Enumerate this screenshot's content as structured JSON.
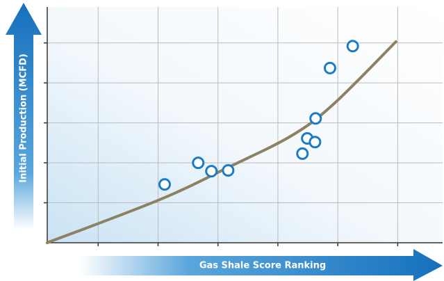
{
  "chart_data": {
    "type": "scatter",
    "x_label": "Gas Shale Score Ranking",
    "y_label": "Initial Production (MCFD)",
    "x": [
      2.11,
      2.67,
      2.89,
      3.17,
      4.41,
      4.49,
      4.62,
      4.63,
      4.87,
      5.25
    ],
    "values": [
      1.46,
      2.0,
      1.79,
      1.81,
      2.23,
      2.61,
      2.52,
      3.11,
      4.37,
      4.92
    ],
    "color": "#1b7bc4",
    "trend": {
      "x": [
        0.15,
        2.03,
        3.19,
        4.23,
        4.93,
        5.97
      ],
      "y": [
        0,
        1.08,
        1.9,
        2.68,
        3.47,
        5.03
      ],
      "color": "#8c8262"
    },
    "xlim": [
      0.15,
      6.75
    ],
    "ylim": [
      0,
      5.9
    ],
    "xticks": [
      1,
      2,
      3,
      4,
      5,
      6
    ],
    "yticks": [
      1,
      2,
      3,
      4,
      5
    ],
    "grid": true
  }
}
